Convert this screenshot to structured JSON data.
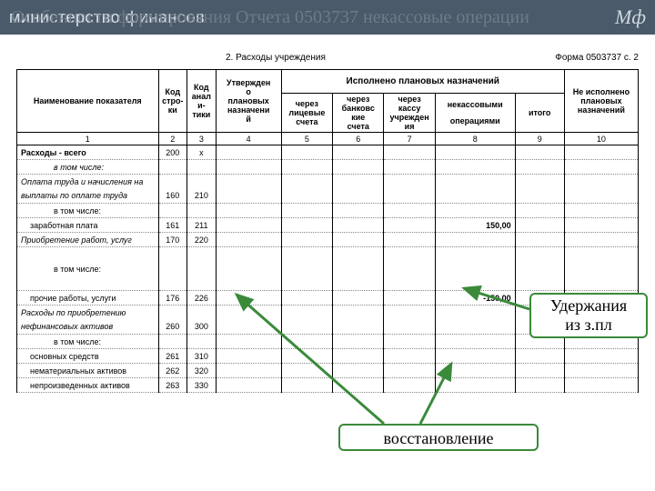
{
  "banner": {
    "ministry": "министерство финансов",
    "logo": "Мф"
  },
  "ghostTitle": "Особенности формирования Отчета 0503737  некассовые операции",
  "section": {
    "left": "2. Расходы учреждения",
    "right": "Форма 0503737 с. 2"
  },
  "headers": {
    "span": "Исполнено плановых назначений",
    "name": "Наименование показателя",
    "code1a": "Код",
    "code1b": "стро-",
    "code1c": "ки",
    "code2a": "Код",
    "code2b": "анал",
    "code2c": "и-",
    "code2d": "тики",
    "utv1": "Утвержден",
    "utv2": "о",
    "utv3": "плановых",
    "utv4": "назначени",
    "utv5": "й",
    "lic1": "через",
    "lic2": "лицевые",
    "lic3": "счета",
    "bank1": "через",
    "bank2": "банковс",
    "bank3": "кие",
    "bank4": "счета",
    "kassa1": "через",
    "kassa2": "кассу",
    "kassa3": "учрежден",
    "kassa4": "ия",
    "nek1": "некассовыми",
    "nek2": "операциями",
    "itog": "итого",
    "neisp1": "Не исполнено",
    "neisp2": "плановых",
    "neisp3": "назначений"
  },
  "numRow": [
    "1",
    "2",
    "3",
    "4",
    "5",
    "6",
    "7",
    "8",
    "9",
    "10"
  ],
  "rows": [
    {
      "name": "Расходы - всего",
      "c1": "200",
      "c2": "x",
      "nek": "",
      "bold": true
    },
    {
      "name": "в том числе:",
      "indent": 1,
      "italic": true
    },
    {
      "name": "Оплата труда и начисления на",
      "italic": true,
      "noborder": true
    },
    {
      "name": "выплаты по оплате труда",
      "italic": true,
      "c1": "160",
      "c2": "210"
    },
    {
      "name": "в том числе:",
      "indent": 1
    },
    {
      "name": "заработная плата",
      "indent": 2,
      "c1": "161",
      "c2": "211",
      "nek": "150,00"
    },
    {
      "name": "Приобретение работ, услуг",
      "italic": true,
      "c1": "170",
      "c2": "220"
    },
    {
      "name": " ",
      "noborder": true
    },
    {
      "name": "в том числе:",
      "indent": 1,
      "noborder": true
    },
    {
      "name": " "
    },
    {
      "name": "прочие работы, услуги",
      "indent": 2,
      "c1": "176",
      "c2": "226",
      "nek": "-150,00"
    },
    {
      "name": "Расходы по приобретению",
      "italic": true,
      "noborder": true
    },
    {
      "name": "нефинансовых активов",
      "italic": true,
      "c1": "260",
      "c2": "300"
    },
    {
      "name": "в том числе:",
      "indent": 1
    },
    {
      "name": "основных средств",
      "indent": 2,
      "c1": "261",
      "c2": "310"
    },
    {
      "name": "нематериальных активов",
      "indent": 2,
      "c1": "262",
      "c2": "320"
    },
    {
      "name": "непроизведенных активов",
      "indent": 2,
      "c1": "263",
      "c2": "330"
    }
  ],
  "callouts": {
    "big1": "Удержания",
    "big2": "из з.пл",
    "small": "восстановление"
  },
  "colors": {
    "calloutBorder": "#3a8a3a",
    "banner": "#4a5a6a"
  }
}
